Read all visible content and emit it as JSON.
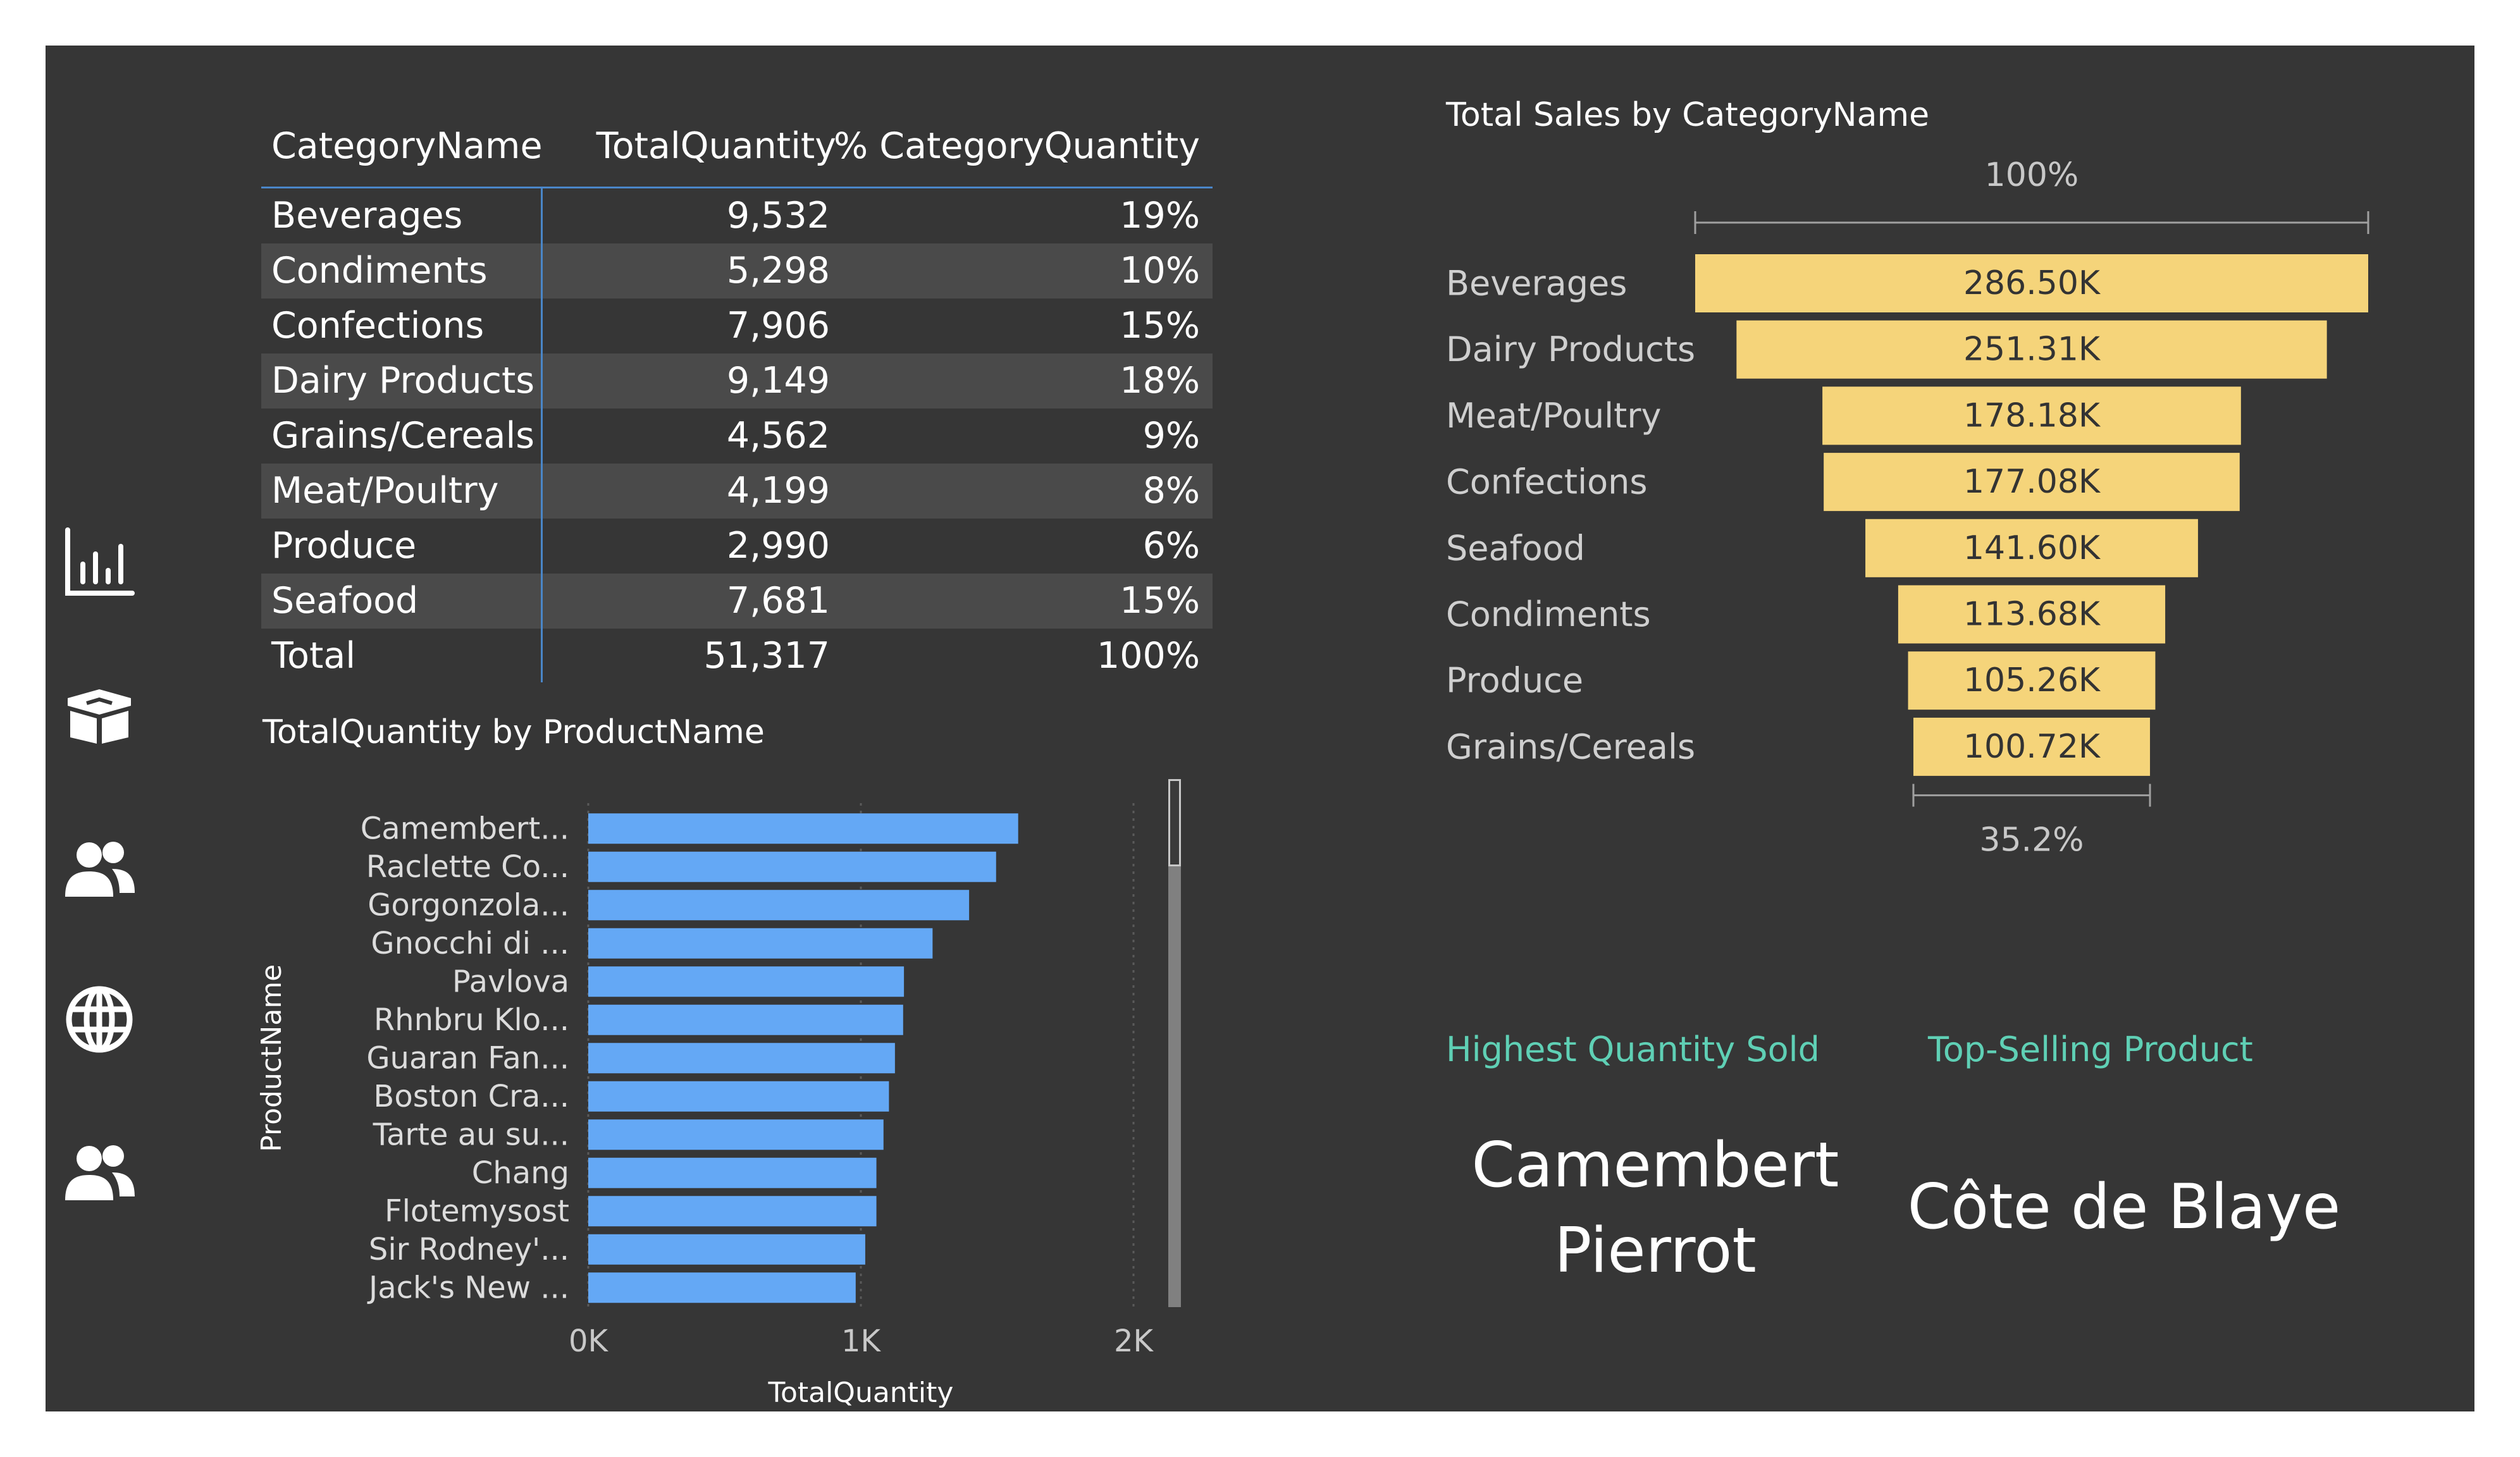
{
  "nav": {
    "icons": [
      "bar-chart-icon",
      "box-icon",
      "users-icon",
      "globe-icon",
      "users-icon"
    ]
  },
  "table": {
    "headers": [
      "CategoryName",
      "TotalQuantity",
      "% CategoryQuantity"
    ],
    "rows": [
      {
        "category": "Beverages",
        "quantity": "9,532",
        "pct": "19%"
      },
      {
        "category": "Condiments",
        "quantity": "5,298",
        "pct": "10%"
      },
      {
        "category": "Confections",
        "quantity": "7,906",
        "pct": "15%"
      },
      {
        "category": "Dairy Products",
        "quantity": "9,149",
        "pct": "18%"
      },
      {
        "category": "Grains/Cereals",
        "quantity": "4,562",
        "pct": "9%"
      },
      {
        "category": "Meat/Poultry",
        "quantity": "4,199",
        "pct": "8%"
      },
      {
        "category": "Produce",
        "quantity": "2,990",
        "pct": "6%"
      },
      {
        "category": "Seafood",
        "quantity": "7,681",
        "pct": "15%"
      }
    ],
    "total": {
      "label": "Total",
      "quantity": "51,317",
      "pct": "100%"
    },
    "accent_color": "#4a86c8"
  },
  "chart_data": [
    {
      "type": "bar",
      "orientation": "horizontal",
      "title": "TotalQuantity by ProductName",
      "xlabel": "TotalQuantity",
      "ylabel": "ProductName",
      "categories": [
        "Camembert...",
        "Raclette Co...",
        "Gorgonzola...",
        "Gnocchi di ...",
        "Pavlova",
        "Rhnbru Klo...",
        "Guaran Fan...",
        "Boston Cra...",
        "Tarte au su...",
        "Chang",
        "Flotemysost",
        "Sir Rodney'...",
        "Jack's New ..."
      ],
      "values": [
        1577,
        1496,
        1397,
        1263,
        1158,
        1155,
        1125,
        1103,
        1083,
        1057,
        1057,
        1016,
        981
      ],
      "xlim": [
        0,
        2000
      ],
      "xticks": [
        "0K",
        "1K",
        "2K"
      ],
      "color": "#64a8f5",
      "grid": true
    },
    {
      "type": "funnel",
      "title": "Total Sales by CategoryName",
      "categories": [
        "Beverages",
        "Dairy Products",
        "Meat/Poultry",
        "Confections",
        "Seafood",
        "Condiments",
        "Produce",
        "Grains/Cereals"
      ],
      "values": [
        286.5,
        251.31,
        178.18,
        177.08,
        141.6,
        113.68,
        105.26,
        100.72
      ],
      "value_labels": [
        "286.50K",
        "251.31K",
        "178.18K",
        "177.08K",
        "141.60K",
        "113.68K",
        "105.26K",
        "100.72K"
      ],
      "top_pct_label": "100%",
      "bottom_pct_label": "35.2%",
      "color": "#f5d47a"
    }
  ],
  "cards": {
    "highest_quantity": {
      "title": "Highest Quantity Sold",
      "value": "Camembert Pierrot"
    },
    "top_selling": {
      "title": "Top-Selling Product",
      "value": "Côte de Blaye"
    }
  }
}
